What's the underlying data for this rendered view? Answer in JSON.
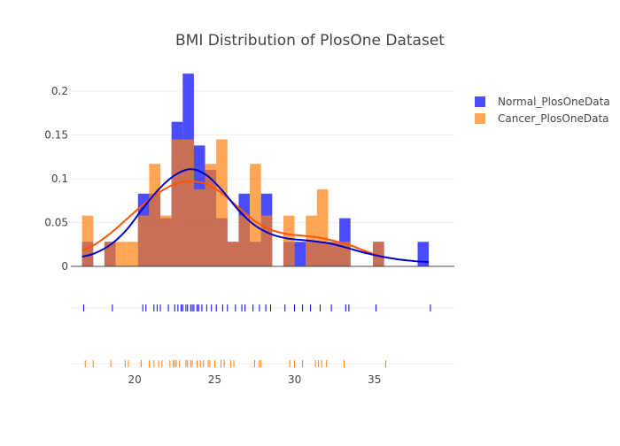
{
  "chart_data": {
    "type": "histogram",
    "title": "BMI Distribution of PlosOne Dataset",
    "xlabel": "",
    "ylabel": "",
    "xlim": [
      16,
      40
    ],
    "ylim": [
      0,
      0.2
    ],
    "x_ticks": [
      20,
      25,
      30,
      35
    ],
    "y_ticks": [
      0,
      0.05,
      0.1,
      0.15,
      0.2
    ],
    "bin_width": 0.7,
    "legend_position": "top-right",
    "grid": true,
    "series": [
      {
        "name": "Normal_PlosOneData",
        "color": "#0000ff",
        "bins": [
          {
            "x0": 16.7,
            "x1": 17.4,
            "y": 0.028
          },
          {
            "x0": 18.1,
            "x1": 18.8,
            "y": 0.028
          },
          {
            "x0": 20.2,
            "x1": 20.9,
            "y": 0.083
          },
          {
            "x0": 20.9,
            "x1": 21.6,
            "y": 0.083
          },
          {
            "x0": 21.6,
            "x1": 22.3,
            "y": 0.055
          },
          {
            "x0": 22.3,
            "x1": 23.0,
            "y": 0.165
          },
          {
            "x0": 23.0,
            "x1": 23.7,
            "y": 0.22
          },
          {
            "x0": 23.7,
            "x1": 24.4,
            "y": 0.138
          },
          {
            "x0": 24.4,
            "x1": 25.1,
            "y": 0.11
          },
          {
            "x0": 25.1,
            "x1": 25.8,
            "y": 0.055
          },
          {
            "x0": 25.8,
            "x1": 26.5,
            "y": 0.028
          },
          {
            "x0": 26.5,
            "x1": 27.2,
            "y": 0.083
          },
          {
            "x0": 27.2,
            "x1": 27.9,
            "y": 0.028
          },
          {
            "x0": 27.9,
            "x1": 28.6,
            "y": 0.083
          },
          {
            "x0": 29.3,
            "x1": 30.0,
            "y": 0.028
          },
          {
            "x0": 30.0,
            "x1": 30.7,
            "y": 0.028
          },
          {
            "x0": 30.7,
            "x1": 31.4,
            "y": 0.028
          },
          {
            "x0": 31.4,
            "x1": 32.1,
            "y": 0.028
          },
          {
            "x0": 32.1,
            "x1": 32.8,
            "y": 0.028
          },
          {
            "x0": 32.8,
            "x1": 33.5,
            "y": 0.055
          },
          {
            "x0": 34.9,
            "x1": 35.6,
            "y": 0.028
          },
          {
            "x0": 37.7,
            "x1": 38.4,
            "y": 0.028
          }
        ],
        "kde": [
          [
            16.7,
            0.011
          ],
          [
            17.5,
            0.015
          ],
          [
            18.5,
            0.025
          ],
          [
            19.5,
            0.042
          ],
          [
            20.5,
            0.066
          ],
          [
            21.5,
            0.088
          ],
          [
            22.5,
            0.104
          ],
          [
            23.5,
            0.111
          ],
          [
            24.5,
            0.104
          ],
          [
            25.5,
            0.086
          ],
          [
            26.5,
            0.064
          ],
          [
            27.5,
            0.047
          ],
          [
            28.5,
            0.037
          ],
          [
            29.5,
            0.032
          ],
          [
            30.5,
            0.03
          ],
          [
            31.5,
            0.028
          ],
          [
            32.5,
            0.025
          ],
          [
            33.5,
            0.02
          ],
          [
            34.5,
            0.015
          ],
          [
            35.5,
            0.011
          ],
          [
            36.5,
            0.008
          ],
          [
            37.5,
            0.006
          ],
          [
            38.4,
            0.005
          ]
        ],
        "rug": [
          16.8,
          18.6,
          20.5,
          20.7,
          21.2,
          21.4,
          21.6,
          22.1,
          22.5,
          22.7,
          22.9,
          23.0,
          23.2,
          23.3,
          23.5,
          23.6,
          23.7,
          23.9,
          24.0,
          24.2,
          24.5,
          24.8,
          25.1,
          25.5,
          25.8,
          26.3,
          26.7,
          26.9,
          27.4,
          27.8,
          28.2,
          28.5,
          29.4,
          30.0,
          30.5,
          31.0,
          31.6,
          32.3,
          33.2,
          33.4,
          35.1,
          38.5
        ]
      },
      {
        "name": "Cancer_PlosOneData",
        "color": "#ff7f0e",
        "bins": [
          {
            "x0": 16.7,
            "x1": 17.4,
            "y": 0.058
          },
          {
            "x0": 18.1,
            "x1": 18.8,
            "y": 0.028
          },
          {
            "x0": 18.8,
            "x1": 19.5,
            "y": 0.028
          },
          {
            "x0": 19.5,
            "x1": 20.2,
            "y": 0.028
          },
          {
            "x0": 20.2,
            "x1": 20.9,
            "y": 0.058
          },
          {
            "x0": 20.9,
            "x1": 21.6,
            "y": 0.117
          },
          {
            "x0": 21.6,
            "x1": 22.3,
            "y": 0.058
          },
          {
            "x0": 22.3,
            "x1": 23.0,
            "y": 0.145
          },
          {
            "x0": 23.0,
            "x1": 23.7,
            "y": 0.145
          },
          {
            "x0": 23.7,
            "x1": 24.4,
            "y": 0.088
          },
          {
            "x0": 24.4,
            "x1": 25.1,
            "y": 0.117
          },
          {
            "x0": 25.1,
            "x1": 25.8,
            "y": 0.145
          },
          {
            "x0": 25.8,
            "x1": 26.5,
            "y": 0.028
          },
          {
            "x0": 26.5,
            "x1": 27.2,
            "y": 0.058
          },
          {
            "x0": 27.2,
            "x1": 27.9,
            "y": 0.117
          },
          {
            "x0": 27.9,
            "x1": 28.6,
            "y": 0.058
          },
          {
            "x0": 29.3,
            "x1": 30.0,
            "y": 0.058
          },
          {
            "x0": 30.7,
            "x1": 31.4,
            "y": 0.058
          },
          {
            "x0": 31.4,
            "x1": 32.1,
            "y": 0.088
          },
          {
            "x0": 32.1,
            "x1": 32.8,
            "y": 0.028
          },
          {
            "x0": 32.8,
            "x1": 33.5,
            "y": 0.028
          },
          {
            "x0": 34.9,
            "x1": 35.6,
            "y": 0.028
          }
        ],
        "kde": [
          [
            16.7,
            0.018
          ],
          [
            17.5,
            0.025
          ],
          [
            18.5,
            0.038
          ],
          [
            19.5,
            0.054
          ],
          [
            20.5,
            0.07
          ],
          [
            21.5,
            0.084
          ],
          [
            22.5,
            0.094
          ],
          [
            23.5,
            0.097
          ],
          [
            24.5,
            0.094
          ],
          [
            25.5,
            0.083
          ],
          [
            26.5,
            0.067
          ],
          [
            27.5,
            0.052
          ],
          [
            28.5,
            0.042
          ],
          [
            29.5,
            0.037
          ],
          [
            30.5,
            0.035
          ],
          [
            31.5,
            0.033
          ],
          [
            32.5,
            0.029
          ],
          [
            33.5,
            0.024
          ],
          [
            34.5,
            0.017
          ],
          [
            35.5,
            0.011
          ]
        ],
        "rug": [
          16.9,
          17.4,
          18.5,
          19.4,
          19.6,
          20.4,
          20.9,
          21.2,
          21.5,
          21.7,
          22.2,
          22.4,
          22.5,
          22.6,
          22.8,
          23.2,
          23.3,
          23.5,
          23.6,
          23.9,
          24.1,
          24.3,
          24.6,
          24.7,
          25.0,
          25.4,
          25.6,
          26.0,
          26.2,
          27.5,
          27.8,
          27.9,
          29.7,
          30.0,
          30.5,
          31.3,
          31.5,
          31.7,
          32.0,
          33.1,
          35.7
        ]
      }
    ]
  }
}
